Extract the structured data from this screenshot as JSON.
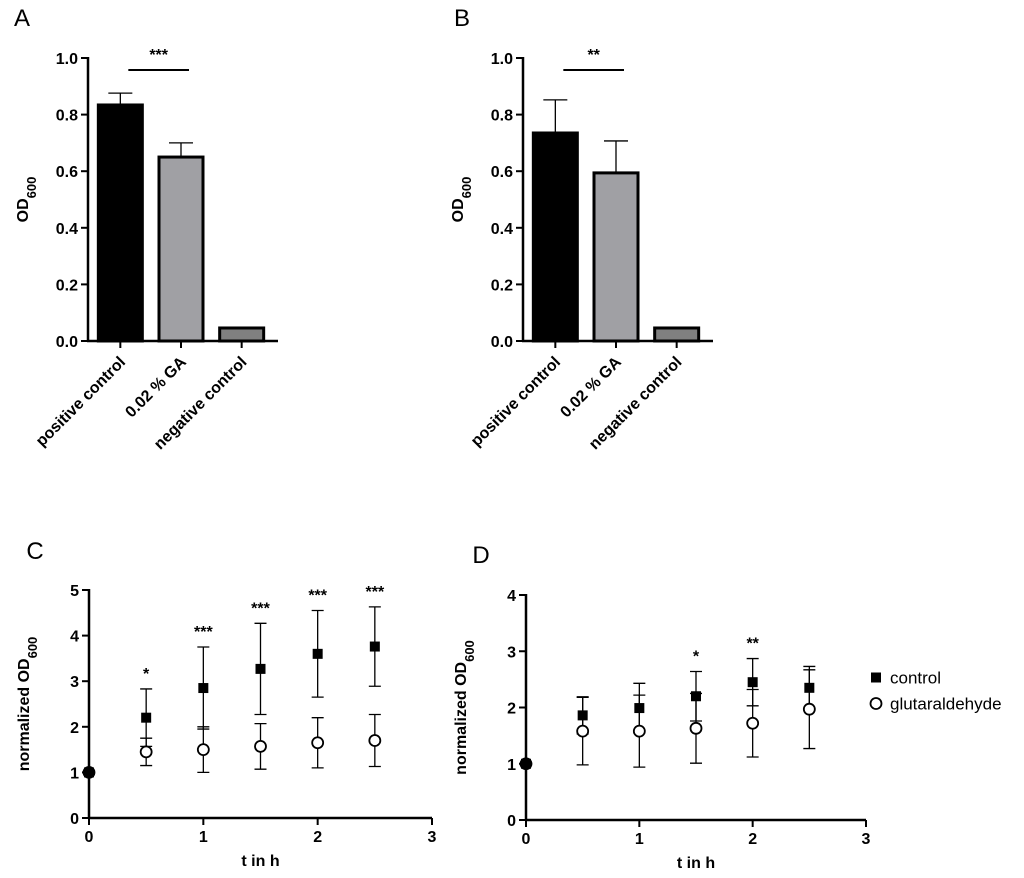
{
  "chart_data": [
    {
      "type": "bar",
      "panel": "A",
      "ylabel": "OD",
      "ylabel_sub": "600",
      "categories": [
        "positive control",
        "0.02 % GA",
        "negative control"
      ],
      "values": [
        0.834,
        0.65,
        0.046
      ],
      "errors": [
        0.042,
        0.05,
        0
      ],
      "colors": [
        "#000000",
        "#a0a0a4",
        "#808080"
      ],
      "ylim": [
        0,
        1
      ],
      "yticks": [
        {
          "value": 0,
          "label": "0.0"
        },
        0.2,
        0.4,
        0.6,
        0.8,
        {
          "value": 1,
          "label": "1.0"
        }
      ],
      "annotation": "***"
    },
    {
      "type": "bar",
      "panel": "B",
      "ylabel": "OD",
      "ylabel_sub": "600",
      "categories": [
        "positive control",
        "0.02 % GA",
        "negative control"
      ],
      "values": [
        0.735,
        0.594,
        0.046
      ],
      "errors": [
        0.117,
        0.113,
        0
      ],
      "colors": [
        "#000000",
        "#a0a0a4",
        "#808080"
      ],
      "ylim": [
        0,
        1
      ],
      "yticks": [
        {
          "value": 0,
          "label": "0.0"
        },
        0.2,
        0.4,
        0.6,
        0.8,
        {
          "value": 1,
          "label": "1.0"
        }
      ],
      "annotation": "**"
    },
    {
      "type": "scatter",
      "panel": "C",
      "xlabel": "t in h",
      "ylabel": "normalized OD",
      "ylabel_sub": "600",
      "x": [
        0,
        0.5,
        1,
        1.5,
        2,
        2.5
      ],
      "series": [
        {
          "color": "#000000",
          "marker": "square",
          "values": [
            1,
            2.2,
            2.85,
            3.27,
            3.6,
            3.76
          ],
          "errors": [
            0,
            0.63,
            0.9,
            1.0,
            0.95,
            0.87
          ]
        },
        {
          "color": "#000000",
          "marker": "circle",
          "values": [
            1,
            1.45,
            1.5,
            1.57,
            1.65,
            1.7
          ],
          "errors": [
            0,
            0.3,
            0.5,
            0.5,
            0.55,
            0.57
          ]
        }
      ],
      "annotations": [
        null,
        "*",
        "***",
        "***",
        "***",
        "***"
      ],
      "xlim": [
        0,
        3
      ],
      "xticks": [
        0,
        1,
        2,
        3
      ],
      "ylim": [
        0,
        5
      ],
      "yticks": [
        0,
        1,
        2,
        3,
        4,
        5
      ]
    },
    {
      "type": "scatter",
      "panel": "D",
      "xlabel": "t in h",
      "ylabel": "normalized OD",
      "ylabel_sub": "600",
      "x": [
        0,
        0.5,
        1,
        1.5,
        2,
        2.5
      ],
      "series": [
        {
          "name": "control",
          "color": "#000000",
          "marker": "square",
          "values": [
            1,
            1.86,
            1.99,
            2.2,
            2.45,
            2.35
          ],
          "errors": [
            0,
            0.33,
            0.44,
            0.44,
            0.42,
            0.38
          ]
        },
        {
          "name": "glutaraldehyde",
          "color": "#000000",
          "marker": "circle",
          "values": [
            1,
            1.58,
            1.58,
            1.63,
            1.72,
            1.97
          ],
          "errors": [
            0,
            0.6,
            0.64,
            0.62,
            0.6,
            0.7
          ]
        }
      ],
      "annotations": [
        null,
        null,
        null,
        "*",
        "**",
        null
      ],
      "xlim": [
        0,
        3
      ],
      "xticks": [
        0,
        1,
        2,
        3
      ],
      "ylim": [
        0,
        4
      ],
      "yticks": [
        0,
        1,
        2,
        3,
        4
      ],
      "legend": "right"
    }
  ]
}
